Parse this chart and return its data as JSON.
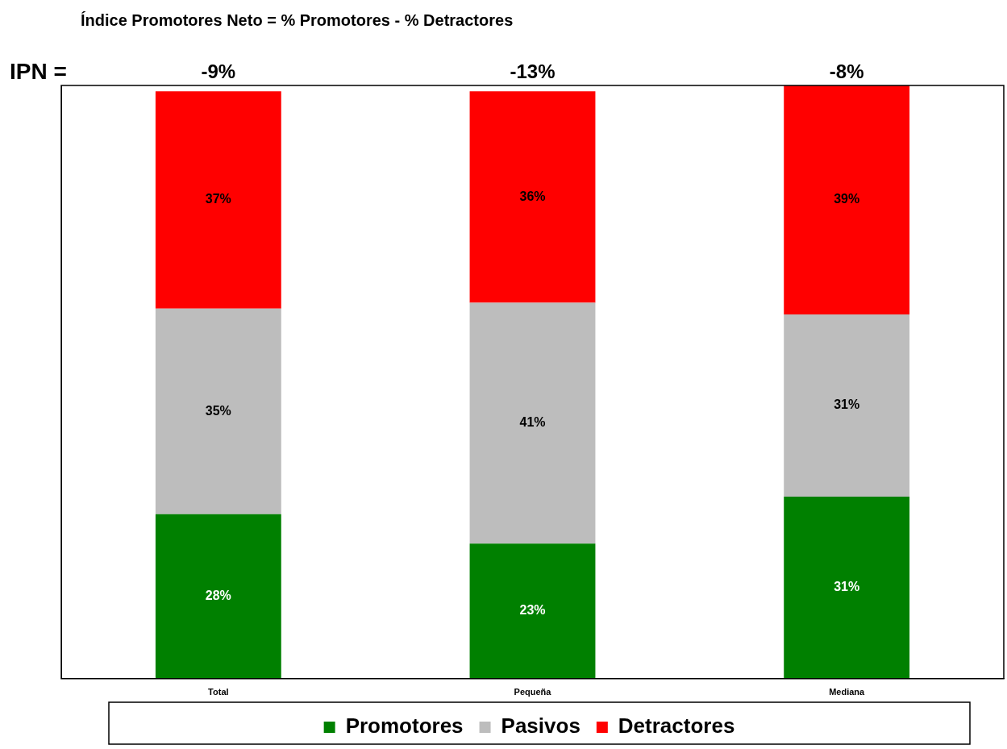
{
  "chart_data": {
    "type": "bar",
    "title": "Índice Promotores Neto = % Promotores - % Detractores",
    "categories": [
      "Total",
      "Pequeña",
      "Mediana"
    ],
    "series": [
      {
        "name": "Promotores",
        "color": "#008000",
        "values": [
          28,
          23,
          31
        ],
        "value_labels": [
          "28%",
          "23%",
          "31%"
        ]
      },
      {
        "name": "Pasivos",
        "color": "#bdbdbd",
        "values": [
          35,
          41,
          31
        ],
        "value_labels": [
          "35%",
          "41%",
          "31%"
        ]
      },
      {
        "name": "Detractores",
        "color": "#ff0000",
        "values": [
          37,
          36,
          39
        ],
        "value_labels": [
          "37%",
          "36%",
          "39%"
        ]
      }
    ],
    "stacked": true,
    "legend": "bottom",
    "grid": false,
    "tick_labels": "x",
    "annotations": [
      "IPN =",
      "-9%",
      "-13%",
      "-8%"
    ]
  }
}
